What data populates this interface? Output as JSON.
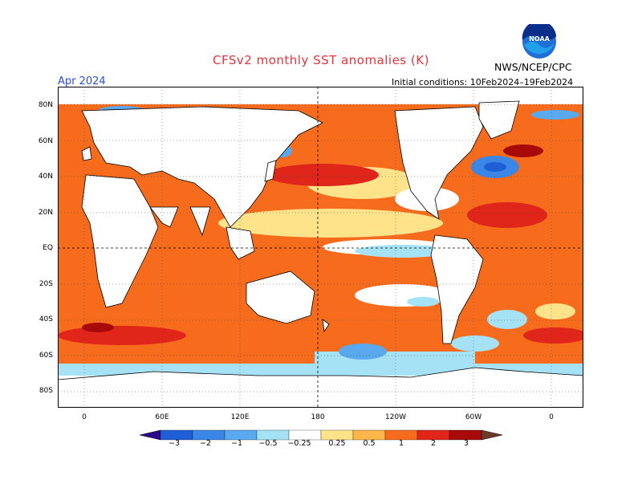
{
  "header": {
    "title": "CFSv2 monthly SST anomalies (K)",
    "agency": "NWS/NCEP/CPC",
    "logo_text": "NOAA",
    "month": "Apr 2024",
    "initial_conditions": "Initial conditions: 10Feb2024–19Feb2024"
  },
  "axes": {
    "lat_labels": [
      "80N",
      "60N",
      "40N",
      "20N",
      "EQ",
      "20S",
      "40S",
      "60S",
      "80S"
    ],
    "lon_labels": [
      "0",
      "60E",
      "120E",
      "180",
      "120W",
      "60W",
      "0"
    ]
  },
  "colorbar": {
    "labels": [
      "−3",
      "−2",
      "−1",
      "−0.5",
      "−0.25",
      "0.25",
      "0.5",
      "1",
      "2",
      "3"
    ],
    "colors": [
      "#2a0a8a",
      "#1f5fd6",
      "#3b86e6",
      "#5aa8ee",
      "#a6e2f5",
      "#ffffff",
      "#ffe38a",
      "#fdb64a",
      "#f76b1c",
      "#e0261a",
      "#a80a0a",
      "#6e3a2a"
    ]
  },
  "colors": {
    "land": "#ffffff",
    "warm": "#f76b1c",
    "very_warm": "#e0261a",
    "cool": "#5aa8ee"
  }
}
